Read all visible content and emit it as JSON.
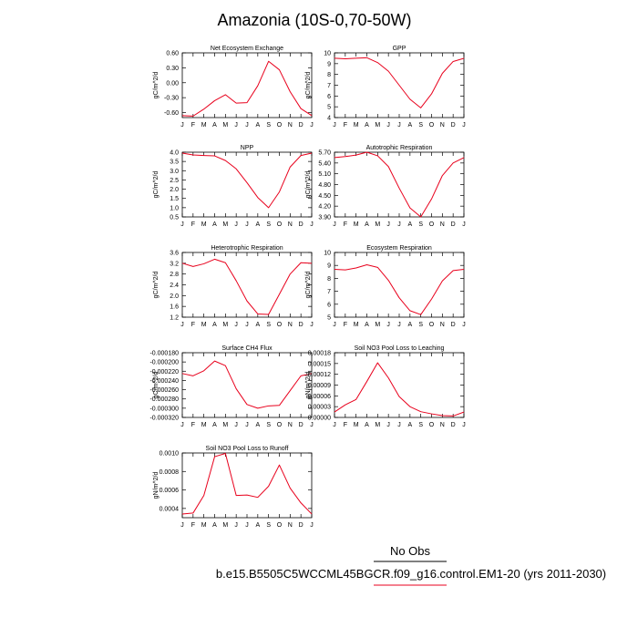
{
  "figure": {
    "title": "Amazonia (10S-0,70-50W)",
    "legend": [
      {
        "label": "No Obs",
        "color": "#000000"
      },
      {
        "label": "b.e15.B5505C5WCCML45BGCR.f09_g16.control.EM1-20 (yrs 2011-2030)",
        "color": "#e8001c"
      }
    ]
  },
  "chart_data": [
    {
      "type": "line",
      "title": "Net Ecosystem Exchange",
      "ylabel": "gC/m^2/d",
      "categories": [
        "J",
        "F",
        "M",
        "A",
        "M",
        "J",
        "J",
        "A",
        "S",
        "O",
        "N",
        "D",
        "J"
      ],
      "ylim": [
        -0.7,
        0.6
      ],
      "yticks": [
        -0.6,
        -0.3,
        0.0,
        0.3,
        0.6
      ],
      "ytick_labels": [
        "-0.60",
        "-0.30",
        "0.00",
        "0.30",
        "0.60"
      ],
      "series": [
        {
          "color": "#e8001c",
          "values": [
            -0.66,
            -0.67,
            -0.53,
            -0.36,
            -0.24,
            -0.41,
            -0.4,
            -0.06,
            0.43,
            0.26,
            -0.18,
            -0.52,
            -0.66
          ]
        }
      ]
    },
    {
      "type": "line",
      "title": "GPP",
      "ylabel": "gC/m^2/d",
      "categories": [
        "J",
        "F",
        "M",
        "A",
        "M",
        "J",
        "J",
        "A",
        "S",
        "O",
        "N",
        "D",
        "J"
      ],
      "ylim": [
        4,
        10
      ],
      "yticks": [
        4,
        5,
        6,
        7,
        8,
        9,
        10
      ],
      "ytick_labels": [
        "4",
        "5",
        "6",
        "7",
        "8",
        "9",
        "10"
      ],
      "series": [
        {
          "color": "#e8001c",
          "values": [
            9.5,
            9.45,
            9.5,
            9.55,
            9.1,
            8.3,
            7.0,
            5.7,
            4.9,
            6.2,
            8.1,
            9.2,
            9.5
          ]
        }
      ]
    },
    {
      "type": "line",
      "title": "NPP",
      "ylabel": "gC/m^2/d",
      "categories": [
        "J",
        "F",
        "M",
        "A",
        "M",
        "J",
        "J",
        "A",
        "S",
        "O",
        "N",
        "D",
        "J"
      ],
      "ylim": [
        0.5,
        4.0
      ],
      "yticks": [
        0.5,
        1.0,
        1.5,
        2.0,
        2.5,
        3.0,
        3.5,
        4.0
      ],
      "ytick_labels": [
        "0.5",
        "1.0",
        "1.5",
        "2.0",
        "2.5",
        "3.0",
        "3.5",
        "4.0"
      ],
      "series": [
        {
          "color": "#e8001c",
          "values": [
            3.95,
            3.85,
            3.82,
            3.8,
            3.55,
            3.1,
            2.35,
            1.55,
            1.0,
            1.85,
            3.2,
            3.82,
            3.95
          ]
        }
      ]
    },
    {
      "type": "line",
      "title": "Autotrophic Respiration",
      "ylabel": "gC/m^2/d",
      "categories": [
        "J",
        "F",
        "M",
        "A",
        "M",
        "J",
        "J",
        "A",
        "S",
        "O",
        "N",
        "D",
        "J"
      ],
      "ylim": [
        3.9,
        5.7
      ],
      "yticks": [
        3.9,
        4.2,
        4.5,
        4.8,
        5.1,
        5.4,
        5.7
      ],
      "ytick_labels": [
        "3.90",
        "4.20",
        "4.50",
        "4.80",
        "5.10",
        "5.40",
        "5.70"
      ],
      "series": [
        {
          "color": "#e8001c",
          "values": [
            5.55,
            5.58,
            5.62,
            5.7,
            5.6,
            5.3,
            4.7,
            4.15,
            3.9,
            4.4,
            5.05,
            5.4,
            5.55
          ]
        }
      ]
    },
    {
      "type": "line",
      "title": "Heterotrophic Respiration",
      "ylabel": "gC/m^2/d",
      "categories": [
        "J",
        "F",
        "M",
        "A",
        "M",
        "J",
        "J",
        "A",
        "S",
        "O",
        "N",
        "D",
        "J"
      ],
      "ylim": [
        1.2,
        3.6
      ],
      "yticks": [
        1.2,
        1.6,
        2.0,
        2.4,
        2.8,
        3.2,
        3.6
      ],
      "ytick_labels": [
        "1.2",
        "1.6",
        "2.0",
        "2.4",
        "2.8",
        "3.2",
        "3.6"
      ],
      "series": [
        {
          "color": "#e8001c",
          "values": [
            3.2,
            3.08,
            3.18,
            3.35,
            3.22,
            2.55,
            1.8,
            1.32,
            1.3,
            2.05,
            2.8,
            3.22,
            3.2
          ]
        }
      ]
    },
    {
      "type": "line",
      "title": "Ecosystem Respiration",
      "ylabel": "gC/m^2/d",
      "categories": [
        "J",
        "F",
        "M",
        "A",
        "M",
        "J",
        "J",
        "A",
        "S",
        "O",
        "N",
        "D",
        "J"
      ],
      "ylim": [
        5,
        10
      ],
      "yticks": [
        5,
        6,
        7,
        8,
        9,
        10
      ],
      "ytick_labels": [
        "5",
        "6",
        "7",
        "8",
        "9",
        "10"
      ],
      "series": [
        {
          "color": "#e8001c",
          "values": [
            8.7,
            8.65,
            8.8,
            9.05,
            8.85,
            7.85,
            6.5,
            5.5,
            5.2,
            6.4,
            7.8,
            8.6,
            8.7
          ]
        }
      ]
    },
    {
      "type": "line",
      "title": "Surface CH4 Flux",
      "ylabel": "gC/m^2/d",
      "categories": [
        "J",
        "F",
        "M",
        "A",
        "M",
        "J",
        "J",
        "A",
        "S",
        "O",
        "N",
        "D",
        "J"
      ],
      "ylim": [
        -0.00032,
        -0.00018
      ],
      "yticks": [
        -0.00032,
        -0.0003,
        -0.00028,
        -0.00026,
        -0.00024,
        -0.00022,
        -0.0002,
        -0.00018
      ],
      "ytick_labels": [
        "-0.000320",
        "-0.000300",
        "-0.000280",
        "-0.000260",
        "-0.000240",
        "-0.000220",
        "-0.000200",
        "-0.000180"
      ],
      "series": [
        {
          "color": "#e8001c",
          "values": [
            -0.000225,
            -0.00023,
            -0.000219,
            -0.000198,
            -0.000208,
            -0.000258,
            -0.000292,
            -0.0003,
            -0.000295,
            -0.000294,
            -0.000262,
            -0.00023,
            -0.000225
          ]
        }
      ]
    },
    {
      "type": "line",
      "title": "Soil NO3 Pool Loss to Leaching",
      "ylabel": "gN/m^2/d",
      "categories": [
        "J",
        "F",
        "M",
        "A",
        "M",
        "J",
        "J",
        "A",
        "S",
        "O",
        "N",
        "D",
        "J"
      ],
      "ylim": [
        0.0,
        0.00018
      ],
      "yticks": [
        0.0,
        3e-05,
        6e-05,
        9e-05,
        0.00012,
        0.00015,
        0.00018
      ],
      "ytick_labels": [
        "0.00000",
        "0.00003",
        "0.00006",
        "0.00009",
        "0.00012",
        "0.00015",
        "0.00018"
      ],
      "series": [
        {
          "color": "#e8001c",
          "values": [
            1.5e-05,
            3.5e-05,
            5e-05,
            0.0001,
            0.000152,
            0.00011,
            5.8e-05,
            3e-05,
            1.6e-05,
            1e-05,
            5e-06,
            4e-06,
            1.5e-05
          ]
        }
      ]
    },
    {
      "type": "line",
      "title": "Soil NO3 Pool Loss to Runoff",
      "ylabel": "gN/m^2/d",
      "categories": [
        "J",
        "F",
        "M",
        "A",
        "M",
        "J",
        "J",
        "A",
        "S",
        "O",
        "N",
        "D",
        "J"
      ],
      "ylim": [
        0.0003,
        0.001
      ],
      "yticks": [
        0.0004,
        0.0006,
        0.0008,
        0.001
      ],
      "ytick_labels": [
        "0.0004",
        "0.0006",
        "0.0008",
        "0.0010"
      ],
      "series": [
        {
          "color": "#e8001c",
          "values": [
            0.00034,
            0.00035,
            0.00054,
            0.00096,
            0.000995,
            0.00054,
            0.000545,
            0.00052,
            0.00064,
            0.00087,
            0.00062,
            0.00046,
            0.00034
          ]
        }
      ]
    }
  ]
}
